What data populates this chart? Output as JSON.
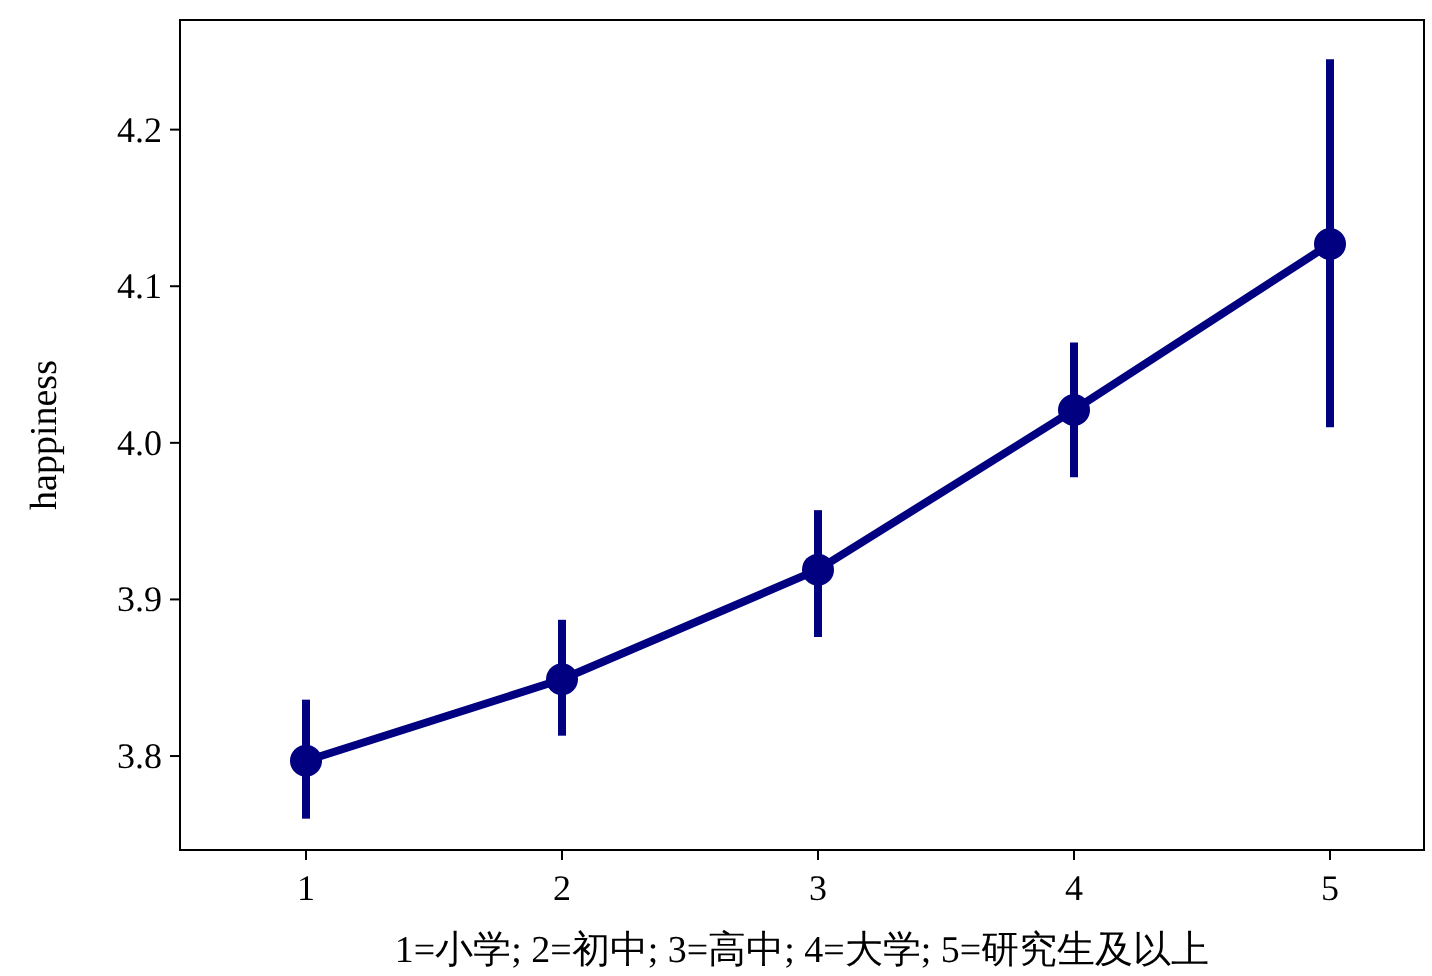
{
  "chart_data": {
    "type": "line",
    "xlabel": "1=小学; 2=初中; 3=高中; 4=大学; 5=研究生及以上",
    "ylabel": "happiness",
    "categories": [
      "1",
      "2",
      "3",
      "4",
      "5"
    ],
    "series": [
      {
        "color": "#000080",
        "values": [
          3.797,
          3.849,
          3.919,
          4.021,
          4.127
        ],
        "errors": [
          [
            3.76,
            3.836
          ],
          [
            3.813,
            3.887
          ],
          [
            3.876,
            3.957
          ],
          [
            3.978,
            4.064
          ],
          [
            4.01,
            4.245
          ]
        ]
      }
    ],
    "ylim": [
      3.74,
      4.27
    ],
    "yticks": [
      3.8,
      {
        "value": 3.9,
        "label": "3.9"
      },
      {
        "value": 4.0,
        "label": "4.0"
      },
      4.1,
      4.2
    ],
    "marker": "circle",
    "line_style": "solid"
  }
}
